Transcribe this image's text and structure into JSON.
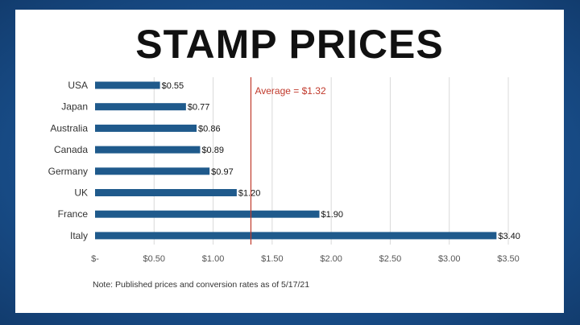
{
  "title": "STAMP PRICES",
  "note": "Note: Published prices and conversion rates as of 5/17/21",
  "colors": {
    "bar": "#1f5a8c",
    "average": "#c0392b",
    "grid": "#d9d9d9"
  },
  "chart_data": {
    "type": "bar",
    "orientation": "horizontal",
    "title": "STAMP PRICES",
    "categories": [
      "USA",
      "Japan",
      "Australia",
      "Canada",
      "Germany",
      "UK",
      "France",
      "Italy"
    ],
    "values": [
      0.55,
      0.77,
      0.86,
      0.89,
      0.97,
      1.2,
      1.9,
      3.4
    ],
    "data_labels": [
      "$0.55",
      "$0.77",
      "$0.86",
      "$0.89",
      "$0.97",
      "$1.20",
      "$1.90",
      "$3.40"
    ],
    "xlim": [
      0,
      3.5
    ],
    "xticks": [
      0,
      0.5,
      1.0,
      1.5,
      2.0,
      2.5,
      3.0,
      3.5
    ],
    "xtick_labels": [
      "$-",
      "$0.50",
      "$1.00",
      "$1.50",
      "$2.00",
      "$2.50",
      "$3.00",
      "$3.50"
    ],
    "reference_line": {
      "value": 1.32,
      "label": "Average = $1.32"
    },
    "grid": true
  }
}
